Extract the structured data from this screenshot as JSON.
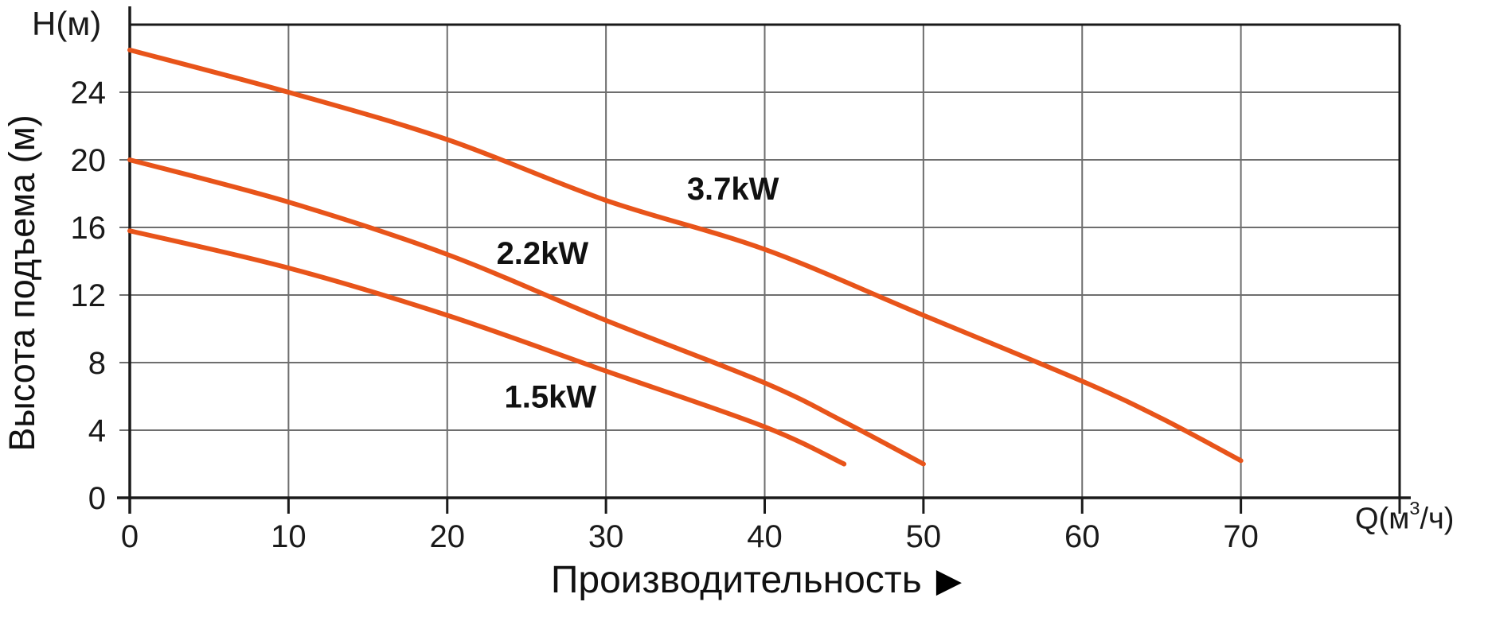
{
  "chart_data": {
    "type": "line",
    "title": "",
    "x_axis": {
      "label": "Производительность",
      "unit": {
        "pre": "Q(м",
        "sup": "3",
        "post": "/ч)"
      },
      "ticks": [
        0,
        10,
        20,
        30,
        40,
        50,
        60,
        70
      ],
      "range": [
        0,
        80
      ],
      "grid": true
    },
    "y_axis": {
      "label": "Высота подъема (м)",
      "corner_label": "H(м)",
      "ticks": [
        0,
        4,
        8,
        12,
        16,
        20,
        24
      ],
      "range": [
        0,
        28
      ],
      "grid": true
    },
    "series": [
      {
        "name": "1.5kW",
        "color": "#E8541A",
        "points": [
          [
            0,
            15.8
          ],
          [
            10,
            13.6
          ],
          [
            20,
            10.8
          ],
          [
            30,
            7.5
          ],
          [
            40,
            4.2
          ],
          [
            45,
            2.0
          ]
        ],
        "label_pos": [
          26.5,
          6.0
        ]
      },
      {
        "name": "2.2kW",
        "color": "#E8541A",
        "points": [
          [
            0,
            20.0
          ],
          [
            10,
            17.5
          ],
          [
            20,
            14.4
          ],
          [
            30,
            10.5
          ],
          [
            40,
            6.8
          ],
          [
            45,
            4.5
          ],
          [
            50,
            2.0
          ]
        ],
        "label_pos": [
          26.0,
          14.5
        ]
      },
      {
        "name": "3.7kW",
        "color": "#E8541A",
        "points": [
          [
            0,
            26.5
          ],
          [
            10,
            24.0
          ],
          [
            20,
            21.2
          ],
          [
            30,
            17.6
          ],
          [
            40,
            14.7
          ],
          [
            50,
            10.8
          ],
          [
            60,
            6.9
          ],
          [
            65,
            4.7
          ],
          [
            70,
            2.2
          ]
        ],
        "label_pos": [
          38.0,
          18.3
        ]
      }
    ],
    "legend_position": "inline-curve-labels"
  },
  "colors": {
    "curve": "#E8541A",
    "grid": "#6E6E6E",
    "axis": "#1A1A1A",
    "text": "#1A1A1A",
    "background": "#FFFFFF"
  },
  "icons": {
    "right_arrow": "▶"
  }
}
